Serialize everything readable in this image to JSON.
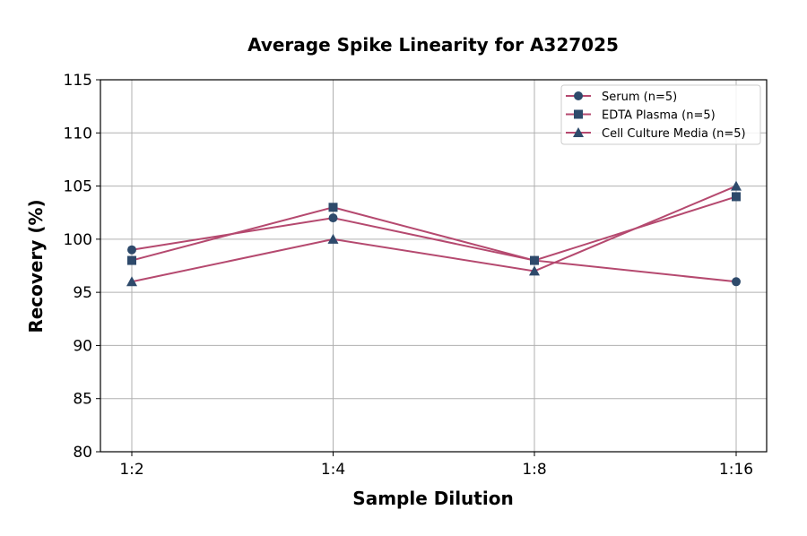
{
  "chart_data": {
    "type": "line",
    "title": "Average Spike Linearity for A327025",
    "xlabel": "Sample Dilution",
    "ylabel": "Recovery (%)",
    "categories": [
      "1:2",
      "1:4",
      "1:8",
      "1:16"
    ],
    "ylim": [
      80,
      115
    ],
    "yticks": [
      80,
      85,
      90,
      95,
      100,
      105,
      110,
      115
    ],
    "grid": true,
    "legend_position": "top-right",
    "line_color": "#b5496f",
    "marker_color": "#2e4a6b",
    "series": [
      {
        "name": "Serum (n=5)",
        "marker": "circle",
        "values": [
          99,
          102,
          98,
          96
        ]
      },
      {
        "name": "EDTA Plasma (n=5)",
        "marker": "square",
        "values": [
          98,
          103,
          98,
          104
        ]
      },
      {
        "name": "Cell Culture Media (n=5)",
        "marker": "triangle",
        "values": [
          96,
          100,
          97,
          105
        ]
      }
    ]
  }
}
